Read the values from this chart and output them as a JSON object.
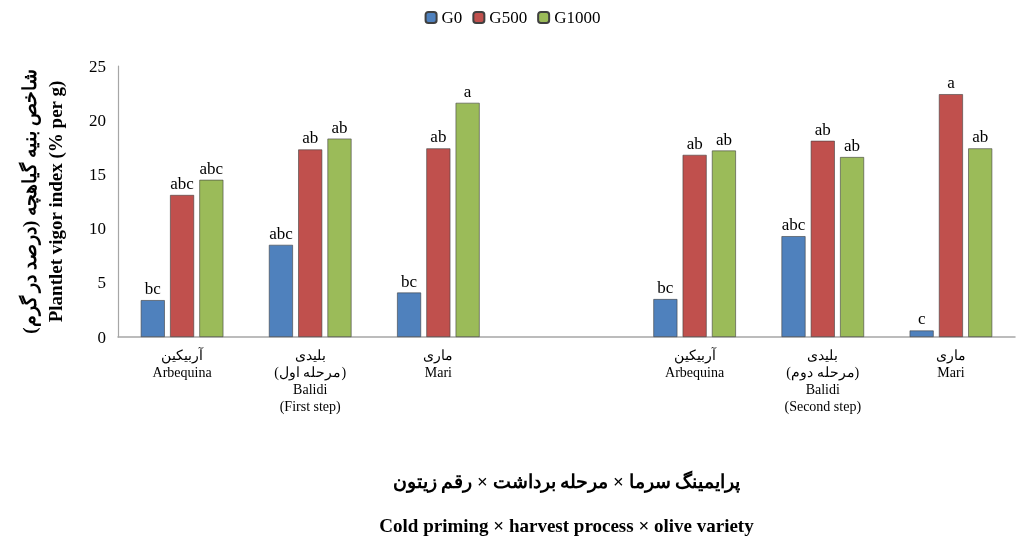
{
  "chart_data": {
    "type": "bar",
    "categories": [
      "آربیکین\nArbequina",
      "بلیدی\n(مرحله اول)\nBalidi\n(First step)",
      "ماری\nMari",
      null,
      "آربیکین\nArbequina",
      "بلیدی\n(مرحله دوم)\nBalidi\n(Second step)",
      "ماری\nMari"
    ],
    "series": [
      {
        "name": "G0",
        "color": "#4f81bd",
        "values": [
          3.4,
          8.5,
          4.1,
          null,
          3.5,
          9.3,
          0.6
        ],
        "value_labels": [
          "bc",
          "abc",
          "bc",
          null,
          "bc",
          "abc",
          "c"
        ]
      },
      {
        "name": "G500",
        "color": "#c0504d",
        "values": [
          13.1,
          17.3,
          17.4,
          null,
          16.8,
          18.1,
          22.4
        ],
        "value_labels": [
          "abc",
          "ab",
          "ab",
          null,
          "ab",
          "ab",
          "a"
        ]
      },
      {
        "name": "G1000",
        "color": "#9bbb59",
        "values": [
          14.5,
          18.3,
          21.6,
          null,
          17.2,
          16.6,
          17.4
        ],
        "value_labels": [
          "abc",
          "ab",
          "a",
          null,
          "ab",
          "ab",
          "ab"
        ]
      }
    ],
    "xlabel": "پرایمینگ سرما × مرحله برداشت × رقم زیتون\nCold priming × harvest process × olive variety",
    "ylabel": "شاخص بنیه گیاهچه (درصد در گرم)\nPlantlet vigor index (% per g)",
    "ylim": [
      0,
      25
    ],
    "yticks": [
      0,
      5,
      10,
      15,
      20,
      25
    ],
    "grid": false,
    "legend": "top"
  }
}
